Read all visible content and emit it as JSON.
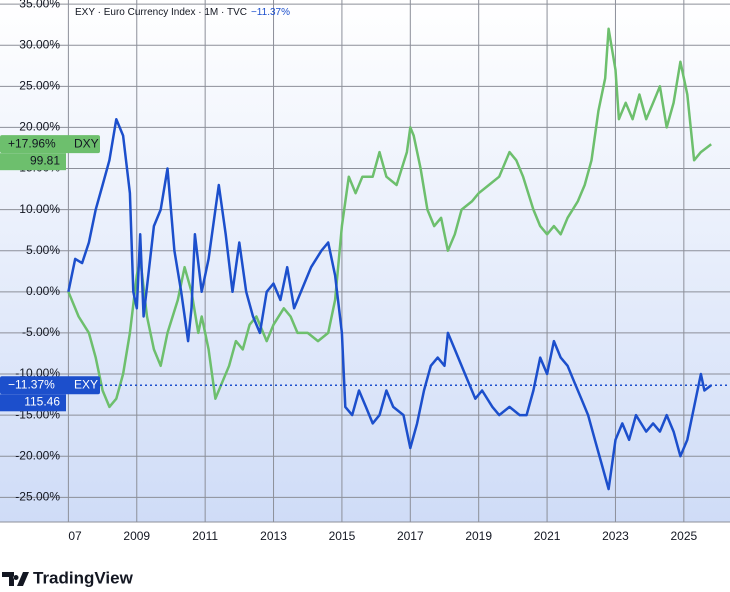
{
  "header": {
    "symbol": "EXY",
    "description": "Euro Currency Index",
    "interval": "1M",
    "source": "TVC",
    "change": "−11.37%"
  },
  "brand": "TradingView",
  "chart_data": {
    "type": "line",
    "xlim": [
      2005,
      2026.35
    ],
    "xticks": [
      {
        "value": 2007,
        "label": "07"
      },
      2009,
      2011,
      2013,
      2015,
      2017,
      2019,
      2021,
      2023,
      2025
    ],
    "ylim": [
      -28,
      35.5
    ],
    "yticks": [
      {
        "value": 35,
        "label": "35.00%"
      },
      {
        "value": 30,
        "label": "30.00%"
      },
      {
        "value": 25,
        "label": "25.00%"
      },
      {
        "value": 20,
        "label": "20.00%"
      },
      {
        "value": 15,
        "label": "15.00%"
      },
      {
        "value": 10,
        "label": "10.00%"
      },
      {
        "value": 5,
        "label": "5.00%"
      },
      {
        "value": 0,
        "label": "0.00%"
      },
      {
        "value": -5,
        "label": "-5.00%"
      },
      {
        "value": -10,
        "label": "-10.00%"
      },
      {
        "value": -15,
        "label": "-15.00%"
      },
      {
        "value": -20,
        "label": "-20.00%"
      },
      {
        "value": -25,
        "label": "-25.00%"
      }
    ],
    "grid": true,
    "series": [
      {
        "name": "DXY",
        "color": "#6dbf6d",
        "change_label": "+17.96%",
        "price": 99.81,
        "x": [
          2007.0,
          2007.3,
          2007.6,
          2007.8,
          2008.0,
          2008.2,
          2008.4,
          2008.6,
          2008.8,
          2009.0,
          2009.1,
          2009.3,
          2009.5,
          2009.7,
          2009.9,
          2010.2,
          2010.4,
          2010.6,
          2010.8,
          2010.9,
          2011.1,
          2011.3,
          2011.5,
          2011.7,
          2011.9,
          2012.1,
          2012.3,
          2012.5,
          2012.8,
          2013.0,
          2013.3,
          2013.5,
          2013.7,
          2014.0,
          2014.3,
          2014.6,
          2014.8,
          2015.0,
          2015.2,
          2015.4,
          2015.6,
          2015.9,
          2016.1,
          2016.3,
          2016.6,
          2016.9,
          2017.0,
          2017.1,
          2017.3,
          2017.5,
          2017.7,
          2017.9,
          2018.1,
          2018.3,
          2018.5,
          2018.8,
          2019.0,
          2019.3,
          2019.6,
          2019.9,
          2020.1,
          2020.3,
          2020.6,
          2020.8,
          2021.0,
          2021.2,
          2021.4,
          2021.6,
          2021.9,
          2022.1,
          2022.3,
          2022.5,
          2022.7,
          2022.8,
          2023.0,
          2023.1,
          2023.3,
          2023.5,
          2023.7,
          2023.9,
          2024.1,
          2024.3,
          2024.5,
          2024.7,
          2024.9,
          2025.1,
          2025.3,
          2025.5,
          2025.8
        ],
        "values": [
          0,
          -3,
          -5,
          -8,
          -12,
          -14,
          -13,
          -10,
          -5,
          2,
          4,
          -3,
          -7,
          -9,
          -5,
          -1,
          3,
          0,
          -5,
          -3,
          -7,
          -13,
          -11,
          -9,
          -6,
          -7,
          -4,
          -3,
          -6,
          -4,
          -2,
          -3,
          -5,
          -5,
          -6,
          -5,
          -1,
          8,
          14,
          12,
          14,
          14,
          17,
          14,
          13,
          17,
          20,
          19,
          15,
          10,
          8,
          9,
          5,
          7,
          10,
          11,
          12,
          13,
          14,
          17,
          16,
          14,
          10,
          8,
          7,
          8,
          7,
          9,
          11,
          13,
          16,
          22,
          26,
          32,
          27,
          21,
          23,
          21,
          24,
          21,
          23,
          25,
          20,
          23,
          28,
          24,
          16,
          17,
          17.96
        ]
      },
      {
        "name": "EXY",
        "color": "#1c4fcc",
        "change_label": "−11.37%",
        "price": 115.46,
        "x": [
          2007.0,
          2007.2,
          2007.4,
          2007.6,
          2007.8,
          2008.0,
          2008.2,
          2008.4,
          2008.6,
          2008.8,
          2008.9,
          2009.0,
          2009.1,
          2009.2,
          2009.5,
          2009.7,
          2009.9,
          2010.1,
          2010.3,
          2010.5,
          2010.6,
          2010.7,
          2010.9,
          2011.1,
          2011.3,
          2011.4,
          2011.6,
          2011.8,
          2012.0,
          2012.2,
          2012.4,
          2012.6,
          2012.8,
          2013.0,
          2013.2,
          2013.4,
          2013.6,
          2013.9,
          2014.1,
          2014.4,
          2014.6,
          2014.8,
          2015.0,
          2015.1,
          2015.3,
          2015.5,
          2015.7,
          2015.9,
          2016.1,
          2016.3,
          2016.5,
          2016.8,
          2016.9,
          2017.0,
          2017.2,
          2017.4,
          2017.6,
          2017.8,
          2018.0,
          2018.1,
          2018.3,
          2018.6,
          2018.9,
          2019.1,
          2019.4,
          2019.6,
          2019.9,
          2020.2,
          2020.4,
          2020.6,
          2020.8,
          2021.0,
          2021.2,
          2021.4,
          2021.6,
          2021.8,
          2022.0,
          2022.2,
          2022.4,
          2022.6,
          2022.8,
          2023.0,
          2023.2,
          2023.4,
          2023.6,
          2023.9,
          2024.1,
          2024.3,
          2024.5,
          2024.7,
          2024.9,
          2025.1,
          2025.3,
          2025.5,
          2025.6,
          2025.8
        ],
        "values": [
          0,
          4,
          3.5,
          6,
          10,
          13,
          16,
          21,
          19,
          12,
          0,
          -2,
          7,
          -3,
          8,
          10,
          15,
          5,
          0,
          -6,
          -2,
          7,
          0,
          4,
          10,
          13,
          7,
          0,
          6,
          0,
          -3,
          -5,
          0,
          1,
          -1,
          3,
          -2,
          1,
          3,
          5,
          6,
          2,
          -5,
          -14,
          -15,
          -12,
          -14,
          -16,
          -15,
          -12,
          -14,
          -15,
          -17,
          -19,
          -16,
          -12,
          -9,
          -8,
          -9,
          -5,
          -7,
          -10,
          -13,
          -12,
          -14,
          -15,
          -14,
          -15,
          -15,
          -12,
          -8,
          -10,
          -6,
          -8,
          -9,
          -11,
          -13,
          -15,
          -18,
          -21,
          -24,
          -18,
          -16,
          -18,
          -15,
          -17,
          -16,
          -17,
          -15,
          -17,
          -20,
          -18,
          -14,
          -10,
          -12,
          -11.37
        ]
      }
    ]
  }
}
